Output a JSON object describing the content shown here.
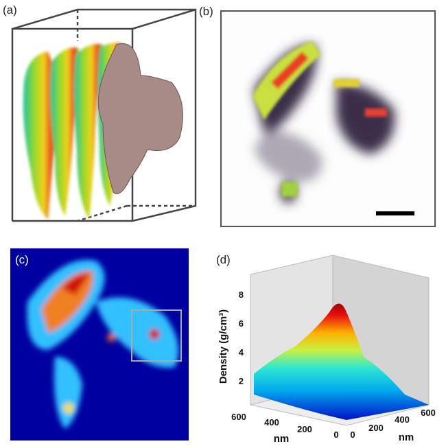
{
  "panels": {
    "a": {
      "label": "(a)"
    },
    "b": {
      "label": "(b)"
    },
    "c": {
      "label": "(c)"
    },
    "d": {
      "label": "(d)",
      "z_label": "Density (g/cm³)",
      "z_ticks": [
        2,
        4,
        6,
        8
      ],
      "x_label": "nm",
      "x_ticks": [
        600,
        400,
        200,
        0
      ],
      "y_label": "nm",
      "y_ticks": [
        0,
        200,
        400,
        600
      ]
    }
  }
}
